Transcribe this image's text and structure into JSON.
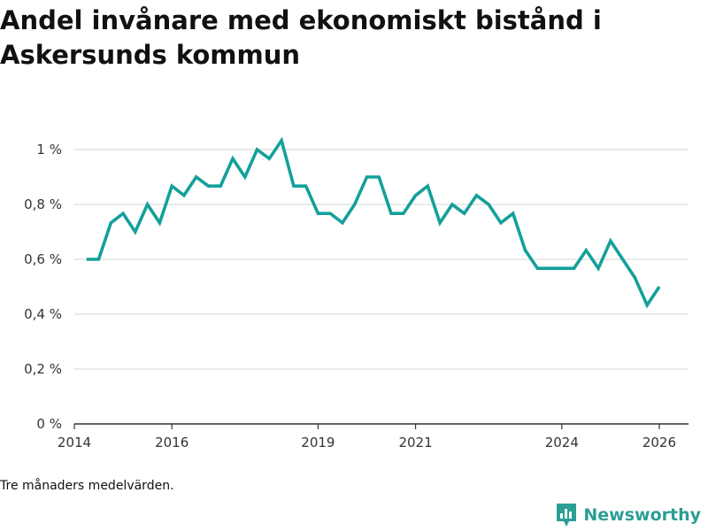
{
  "title": "Andel invånare med ekonomiskt bistånd i Askersunds kommun",
  "caption": "Tre månaders medelvärden.",
  "brand": {
    "name": "Newsworthy",
    "color": "#2b9e95"
  },
  "chart_data": {
    "type": "line",
    "title": "Andel invånare med ekonomiskt bistånd i Askersunds kommun",
    "xlabel": "",
    "ylabel": "",
    "x_unit": "year",
    "ylim": [
      0,
      1.0
    ],
    "xlim": [
      2014,
      2026.6
    ],
    "y_ticks": [
      0,
      0.2,
      0.4,
      0.6,
      0.8,
      1.0
    ],
    "y_tick_labels": [
      "0 %",
      "0,2 %",
      "0,4 %",
      "0,6 %",
      "0,8 %",
      "1 %"
    ],
    "x_ticks": [
      2014,
      2016,
      2019,
      2021,
      2024,
      2026
    ],
    "x_tick_labels": [
      "2014",
      "2016",
      "2019",
      "2021",
      "2024",
      "2026"
    ],
    "grid": true,
    "color": "#14a09a",
    "series": [
      {
        "name": "Andel invånare med ekonomiskt bistånd",
        "x": [
          2014.25,
          2014.5,
          2014.75,
          2015.0,
          2015.25,
          2015.5,
          2015.75,
          2016.0,
          2016.25,
          2016.5,
          2016.75,
          2017.0,
          2017.25,
          2017.5,
          2017.75,
          2018.0,
          2018.25,
          2018.5,
          2018.75,
          2019.0,
          2019.25,
          2019.5,
          2019.75,
          2020.0,
          2020.25,
          2020.5,
          2020.75,
          2021.0,
          2021.25,
          2021.5,
          2021.75,
          2022.0,
          2022.25,
          2022.5,
          2022.75,
          2023.0,
          2023.25,
          2023.5,
          2023.75,
          2024.0,
          2024.25,
          2024.5,
          2024.75,
          2025.0,
          2025.25,
          2025.5,
          2025.75,
          2026.0
        ],
        "values": [
          0.6,
          0.6,
          0.733,
          0.767,
          0.7,
          0.8,
          0.733,
          0.867,
          0.833,
          0.9,
          0.867,
          0.867,
          0.967,
          0.9,
          1.0,
          0.967,
          1.033,
          0.867,
          0.867,
          0.767,
          0.767,
          0.733,
          0.8,
          0.9,
          0.9,
          0.767,
          0.767,
          0.833,
          0.867,
          0.733,
          0.8,
          0.767,
          0.833,
          0.8,
          0.733,
          0.767,
          0.633,
          0.567,
          0.567,
          0.567,
          0.567,
          0.633,
          0.567,
          0.667,
          0.6,
          0.533,
          0.433,
          0.5
        ]
      }
    ]
  }
}
